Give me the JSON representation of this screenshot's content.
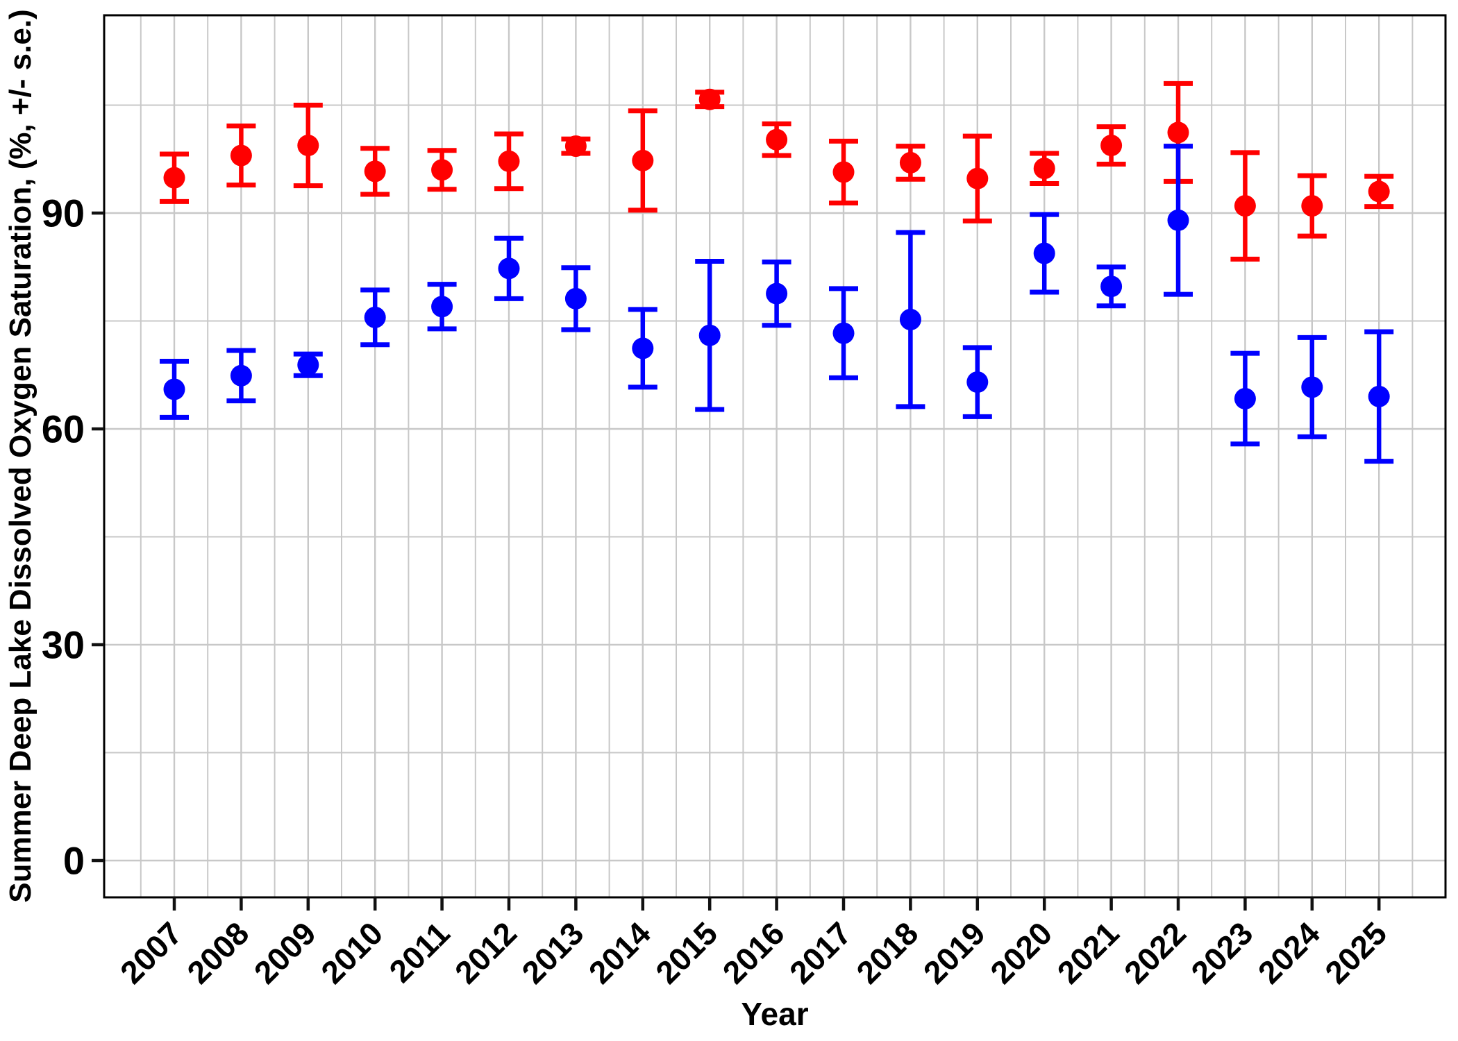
{
  "page": {
    "background_color": "#ffffff",
    "panel_border_color": "#000000",
    "grid_color": "#c8c8c8",
    "tick_color": "#111111"
  },
  "chart_data": {
    "type": "scatter",
    "title": "",
    "xlabel": "Year",
    "ylabel": "Summer Deep Lake Dissolved Oxygen Saturation, (%, +/- s.e.)",
    "x": [
      2007,
      2008,
      2009,
      2010,
      2011,
      2012,
      2013,
      2014,
      2015,
      2016,
      2017,
      2018,
      2019,
      2020,
      2021,
      2022,
      2023,
      2024,
      2025
    ],
    "x_tick_labels": [
      "2007",
      "2008",
      "2009",
      "2010",
      "2011",
      "2012",
      "2013",
      "2014",
      "2015",
      "2016",
      "2017",
      "2018",
      "2019",
      "2020",
      "2021",
      "2022",
      "2023",
      "2024",
      "2025"
    ],
    "y_ticks": [
      0,
      30,
      60,
      90
    ],
    "y_tick_labels": [
      "0",
      "30",
      "60",
      "90"
    ],
    "y_minor_ticks": [
      15,
      45,
      75,
      105
    ],
    "ylim": [
      -5,
      117.5
    ],
    "grid": "major and minor, light gray on white",
    "legend_position": "none",
    "point_style": "filled circles with +/- s.e. error bars",
    "series": [
      {
        "name": "red-series",
        "color": "#FF0000",
        "values": [
          94.9,
          98.0,
          99.4,
          95.8,
          96.0,
          97.2,
          99.3,
          97.3,
          105.8,
          100.2,
          95.7,
          97.0,
          94.8,
          96.2,
          99.4,
          101.2,
          91.0,
          91.0,
          93.0
        ],
        "se": [
          3.3,
          4.1,
          5.6,
          3.2,
          2.7,
          3.8,
          1.0,
          6.9,
          1.0,
          2.2,
          4.3,
          2.3,
          5.9,
          2.1,
          2.6,
          6.8,
          7.4,
          4.2,
          2.1
        ]
      },
      {
        "name": "blue-series",
        "color": "#0000FF",
        "values": [
          65.5,
          67.4,
          68.9,
          75.5,
          77.0,
          82.3,
          78.1,
          71.2,
          73.0,
          78.8,
          73.3,
          75.2,
          66.5,
          84.4,
          79.8,
          89.0,
          64.2,
          65.8,
          64.5
        ],
        "se": [
          3.9,
          3.5,
          1.5,
          3.8,
          3.1,
          4.2,
          4.3,
          5.4,
          10.3,
          4.4,
          6.2,
          12.1,
          4.8,
          5.4,
          2.7,
          10.3,
          6.3,
          6.9,
          9.0
        ]
      }
    ]
  }
}
